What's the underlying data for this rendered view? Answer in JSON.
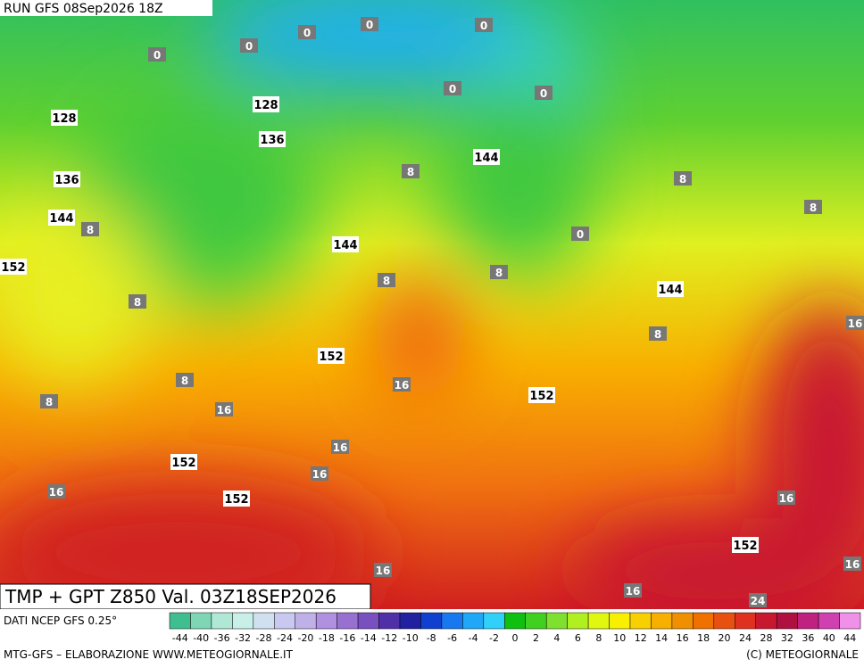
{
  "header": {
    "run": "RUN GFS 08Sep2026 18Z"
  },
  "map": {
    "field_label": "TMP + GPT Z850 Val. 03Z18SEP2026",
    "geopotential_labels": [
      128,
      128,
      136,
      136,
      144,
      144,
      144,
      144,
      152,
      152,
      152,
      152,
      152,
      152
    ],
    "temperature_labels": [
      0,
      0,
      0,
      0,
      0,
      0,
      0,
      0,
      8,
      8,
      8,
      8,
      8,
      8,
      8,
      8,
      8,
      8,
      16,
      16,
      16,
      16,
      16,
      16,
      16,
      16,
      16,
      16,
      24
    ]
  },
  "color_scale": {
    "labels": [
      -44,
      -40,
      -36,
      -32,
      -28,
      -24,
      -20,
      -18,
      -16,
      -14,
      -12,
      -10,
      -8,
      -6,
      -4,
      -2,
      0,
      2,
      4,
      6,
      8,
      10,
      12,
      14,
      16,
      18,
      20,
      24,
      28,
      32,
      36,
      40,
      44
    ],
    "colors": [
      "#3fbf8f",
      "#7fd6b4",
      "#b0e8d6",
      "#c8f0e8",
      "#d0e0f0",
      "#c8c8f0",
      "#c0b0e8",
      "#b090e0",
      "#9870d0",
      "#7850c0",
      "#5030a8",
      "#2020a0",
      "#1040d0",
      "#1878f0",
      "#20a8f8",
      "#30d0f8",
      "#10c010",
      "#40d020",
      "#80e030",
      "#b0f020",
      "#e0f810",
      "#f8f000",
      "#f8d000",
      "#f8b000",
      "#f09000",
      "#f07000",
      "#e85010",
      "#e03020",
      "#c81830",
      "#b01040",
      "#c02080",
      "#d040b0",
      "#f090e8"
    ]
  },
  "footer": {
    "source": "DATI NCEP GFS 0.25°",
    "credit": "MTG-GFS – ELABORAZIONE WWW.METEOGIORNALE.IT",
    "copyright": "(C) METEOGIORNALE"
  }
}
